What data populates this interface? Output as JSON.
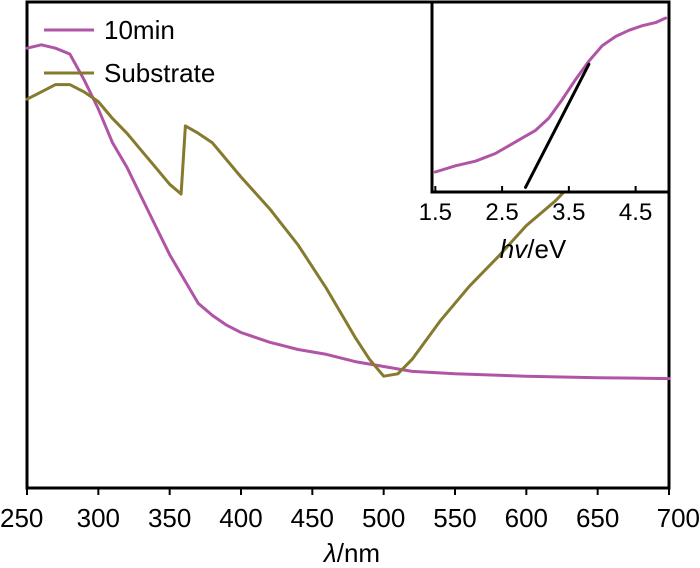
{
  "chart_data": [
    {
      "type": "line",
      "title": "",
      "xlabel_symbol": "λ",
      "xlabel_unit": "/nm",
      "ylabel": "",
      "xlim": [
        250,
        700
      ],
      "xticks": [
        "250",
        "300",
        "350",
        "400",
        "450",
        "500",
        "550",
        "600",
        "650",
        "700"
      ],
      "yticks": [],
      "legend_position": "top-left",
      "series": [
        {
          "name": "10min",
          "color": "#b055a5",
          "x": [
            250,
            260,
            270,
            280,
            290,
            300,
            310,
            320,
            330,
            340,
            350,
            360,
            370,
            380,
            390,
            400,
            420,
            440,
            460,
            480,
            500,
            520,
            550,
            600,
            650,
            700
          ],
          "y": [
            0.905,
            0.912,
            0.905,
            0.893,
            0.84,
            0.78,
            0.71,
            0.66,
            0.6,
            0.54,
            0.48,
            0.43,
            0.38,
            0.355,
            0.335,
            0.32,
            0.3,
            0.285,
            0.275,
            0.26,
            0.25,
            0.24,
            0.235,
            0.23,
            0.227,
            0.225
          ]
        },
        {
          "name": "Substrate",
          "color": "#857a2e",
          "x": [
            250,
            260,
            270,
            280,
            290,
            300,
            310,
            320,
            330,
            340,
            350,
            358,
            361,
            370,
            380,
            400,
            420,
            440,
            460,
            480,
            490,
            500,
            510,
            520,
            540,
            560,
            580,
            600,
            620,
            640,
            660,
            680,
            700
          ],
          "y": [
            0.8,
            0.815,
            0.83,
            0.83,
            0.815,
            0.795,
            0.76,
            0.73,
            0.695,
            0.66,
            0.625,
            0.605,
            0.745,
            0.73,
            0.71,
            0.64,
            0.575,
            0.5,
            0.41,
            0.31,
            0.265,
            0.23,
            0.235,
            0.265,
            0.345,
            0.415,
            0.475,
            0.54,
            0.59,
            0.65,
            0.7,
            0.75,
            0.785
          ]
        }
      ]
    },
    {
      "type": "line",
      "title": "",
      "xlabel_symbol": "hv",
      "xlabel_unit": "/eV",
      "ylabel": "",
      "xlim": [
        1.45,
        5.0
      ],
      "xticks": [
        "1.5",
        "2.5",
        "3.5",
        "4.5"
      ],
      "series": [
        {
          "name": "",
          "color": "#b055a5",
          "x": [
            1.5,
            1.8,
            2.1,
            2.4,
            2.6,
            2.8,
            3.0,
            3.2,
            3.4,
            3.6,
            3.8,
            4.0,
            4.2,
            4.4,
            4.6,
            4.8,
            4.95
          ],
          "y": [
            0.0,
            0.04,
            0.07,
            0.12,
            0.17,
            0.22,
            0.27,
            0.35,
            0.47,
            0.6,
            0.72,
            0.82,
            0.88,
            0.92,
            0.95,
            0.97,
            1.0
          ]
        },
        {
          "name": "",
          "color": "#000000",
          "x": [
            2.85,
            3.8
          ],
          "y": [
            -0.1,
            0.7
          ]
        }
      ]
    }
  ]
}
